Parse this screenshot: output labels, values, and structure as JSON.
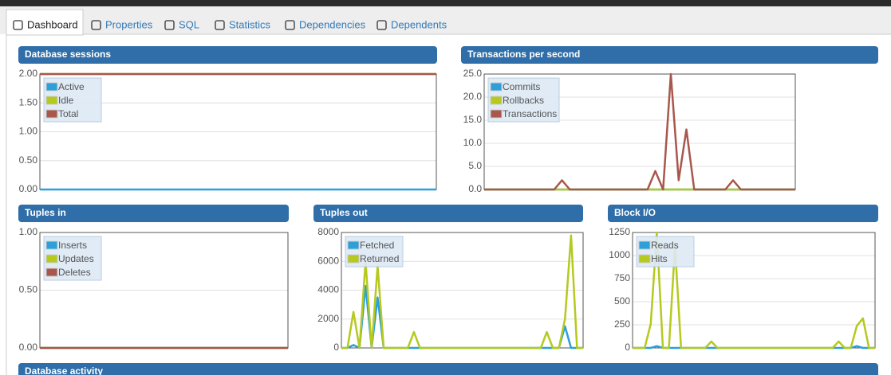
{
  "tabs": [
    "Dashboard",
    "Properties",
    "SQL",
    "Statistics",
    "Dependencies",
    "Dependents"
  ],
  "chart_data": [
    {
      "type": "line",
      "title": "Database sessions",
      "legend": "top-left",
      "grid": true,
      "ylim": [
        0,
        2
      ],
      "yticks": [
        {
          "value": 0,
          "label": "0.00"
        },
        {
          "value": 0.5,
          "label": "0.50"
        },
        {
          "value": 1,
          "label": "1.00"
        },
        {
          "value": 1.5,
          "label": "1.50"
        },
        {
          "value": 2,
          "label": "2.00"
        }
      ],
      "series": [
        {
          "name": "Active",
          "color": "#2d9fd9",
          "values": [
            0,
            0,
            0,
            0,
            0,
            0,
            0,
            0,
            0,
            0,
            0
          ]
        },
        {
          "name": "Idle",
          "color": "#b5c91f",
          "values": [
            2,
            2,
            2,
            2,
            2,
            2,
            2,
            2,
            2,
            2,
            2
          ]
        },
        {
          "name": "Total",
          "color": "#a8574c",
          "values": [
            2,
            2,
            2,
            2,
            2,
            2,
            2,
            2,
            2,
            2,
            2
          ]
        }
      ]
    },
    {
      "type": "line",
      "title": "Transactions per second",
      "legend": "top-left",
      "grid": true,
      "ylim": [
        0,
        25
      ],
      "yticks": [
        {
          "value": 0,
          "label": "0.0"
        },
        {
          "value": 5,
          "label": "5.0"
        },
        {
          "value": 10,
          "label": "10.0"
        },
        {
          "value": 15,
          "label": "15.0"
        },
        {
          "value": 20,
          "label": "20.0"
        },
        {
          "value": 25,
          "label": "25.0"
        }
      ],
      "series": [
        {
          "name": "Commits",
          "color": "#2d9fd9",
          "values": [
            0,
            0,
            0,
            0,
            0,
            0,
            0,
            0,
            0,
            0,
            0,
            0,
            0,
            0,
            0,
            0,
            0,
            0,
            0,
            0,
            0,
            0,
            0,
            0,
            0,
            0,
            0,
            0,
            0,
            0,
            0,
            0,
            0,
            0,
            0,
            0,
            0,
            0,
            0,
            0,
            0
          ]
        },
        {
          "name": "Rollbacks",
          "color": "#b5c91f",
          "values": [
            0,
            0,
            0,
            0,
            0,
            0,
            0,
            0,
            0,
            0,
            0,
            0,
            0,
            0,
            0,
            0,
            0,
            0,
            0,
            0,
            0,
            0,
            0,
            0,
            0,
            0,
            0,
            0,
            0,
            0,
            0,
            0,
            0,
            0,
            0,
            0,
            0,
            0,
            0,
            0,
            0
          ]
        },
        {
          "name": "Transactions",
          "color": "#a8574c",
          "values": [
            0,
            0,
            0,
            0,
            0,
            0,
            0,
            0,
            0,
            0,
            2,
            0,
            0,
            0,
            0,
            0,
            0,
            0,
            0,
            0,
            0,
            0,
            4,
            0,
            25,
            2,
            13,
            0,
            0,
            0,
            0,
            0,
            2,
            0,
            0,
            0,
            0,
            0,
            0,
            0,
            0
          ]
        }
      ]
    },
    {
      "type": "line",
      "title": "Tuples in",
      "legend": "top-left",
      "grid": true,
      "ylim": [
        0,
        1
      ],
      "yticks": [
        {
          "value": 0,
          "label": "0.00"
        },
        {
          "value": 0.5,
          "label": "0.50"
        },
        {
          "value": 1,
          "label": "1.00"
        }
      ],
      "series": [
        {
          "name": "Inserts",
          "color": "#2d9fd9",
          "values": [
            0,
            0,
            0,
            0,
            0,
            0,
            0,
            0,
            0,
            0,
            0
          ]
        },
        {
          "name": "Updates",
          "color": "#b5c91f",
          "values": [
            0,
            0,
            0,
            0,
            0,
            0,
            0,
            0,
            0,
            0,
            0
          ]
        },
        {
          "name": "Deletes",
          "color": "#a8574c",
          "values": [
            0,
            0,
            0,
            0,
            0,
            0,
            0,
            0,
            0,
            0,
            0
          ]
        }
      ]
    },
    {
      "type": "line",
      "title": "Tuples out",
      "legend": "top-left",
      "grid": true,
      "ylim": [
        0,
        8000
      ],
      "yticks": [
        0,
        2000,
        4000,
        6000,
        8000
      ],
      "series": [
        {
          "name": "Fetched",
          "color": "#2d9fd9",
          "values": [
            0,
            0,
            200,
            0,
            4300,
            0,
            3500,
            0,
            0,
            0,
            0,
            0,
            0,
            0,
            0,
            0,
            0,
            0,
            0,
            0,
            0,
            0,
            0,
            0,
            0,
            0,
            0,
            0,
            0,
            0,
            0,
            0,
            0,
            0,
            0,
            0,
            0,
            1500,
            0,
            0,
            0
          ]
        },
        {
          "name": "Returned",
          "color": "#b5c91f",
          "values": [
            0,
            0,
            2500,
            0,
            6000,
            0,
            5700,
            0,
            0,
            0,
            0,
            0,
            1100,
            0,
            0,
            0,
            0,
            0,
            0,
            0,
            0,
            0,
            0,
            0,
            0,
            0,
            0,
            0,
            0,
            0,
            0,
            0,
            0,
            0,
            1100,
            0,
            0,
            2000,
            7800,
            0,
            0
          ]
        }
      ]
    },
    {
      "type": "line",
      "title": "Block I/O",
      "legend": "top-left",
      "grid": true,
      "ylim": [
        0,
        1250
      ],
      "yticks": [
        0,
        250,
        500,
        750,
        1000,
        1250
      ],
      "series": [
        {
          "name": "Reads",
          "color": "#2d9fd9",
          "values": [
            0,
            0,
            0,
            0,
            20,
            0,
            0,
            0,
            0,
            0,
            0,
            0,
            0,
            0,
            0,
            0,
            0,
            0,
            0,
            0,
            0,
            0,
            0,
            0,
            0,
            0,
            0,
            0,
            0,
            0,
            0,
            0,
            0,
            0,
            0,
            0,
            0,
            20,
            0,
            0,
            0
          ]
        },
        {
          "name": "Hits",
          "color": "#b5c91f",
          "values": [
            0,
            0,
            0,
            260,
            1250,
            0,
            0,
            1100,
            0,
            0,
            0,
            0,
            0,
            70,
            0,
            0,
            0,
            0,
            0,
            0,
            0,
            0,
            0,
            0,
            0,
            0,
            0,
            0,
            0,
            0,
            0,
            0,
            0,
            0,
            70,
            0,
            0,
            240,
            320,
            0,
            0
          ]
        }
      ]
    }
  ],
  "bottom_panel": {
    "title": "Database activity"
  }
}
